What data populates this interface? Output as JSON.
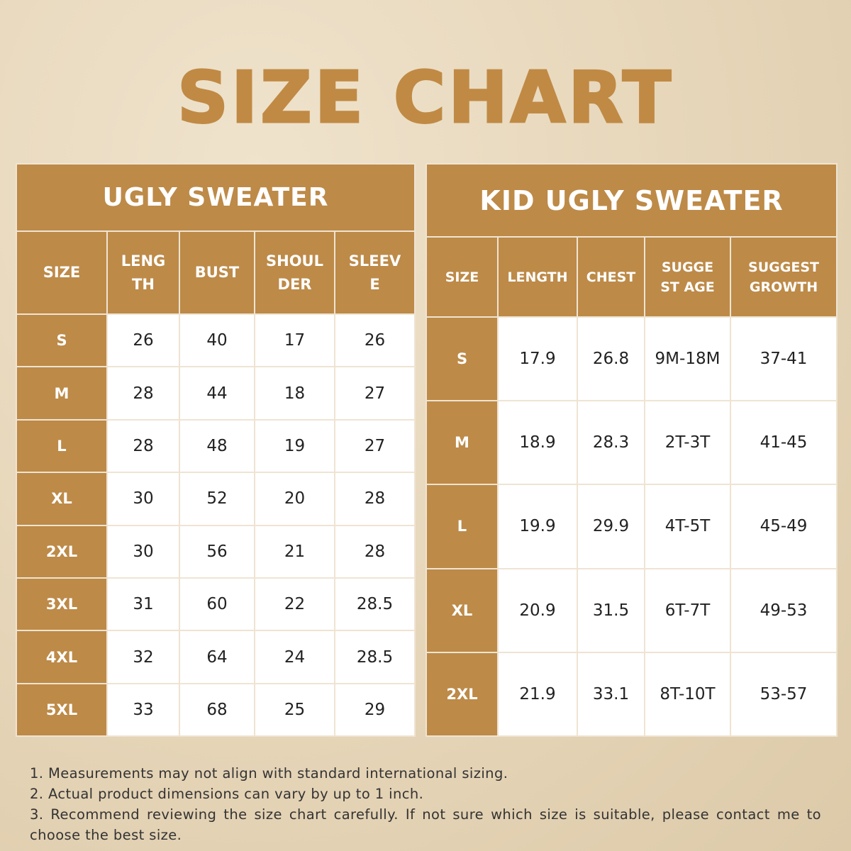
{
  "title": "SIZE CHART",
  "colors": {
    "brand": "#bd8a48",
    "background": "#e6d5b8",
    "cell": "#ffffff"
  },
  "tables": [
    {
      "title": "UGLY SWEATER",
      "headers": [
        "SIZE",
        "LENGTH",
        "BUST",
        "SHOULDER",
        "SLEEVE"
      ],
      "rows": [
        [
          "S",
          "26",
          "40",
          "17",
          "26"
        ],
        [
          "M",
          "28",
          "44",
          "18",
          "27"
        ],
        [
          "L",
          "28",
          "48",
          "19",
          "27"
        ],
        [
          "XL",
          "30",
          "52",
          "20",
          "28"
        ],
        [
          "2XL",
          "30",
          "56",
          "21",
          "28"
        ],
        [
          "3XL",
          "31",
          "60",
          "22",
          "28.5"
        ],
        [
          "4XL",
          "32",
          "64",
          "24",
          "28.5"
        ],
        [
          "5XL",
          "33",
          "68",
          "25",
          "29"
        ]
      ]
    },
    {
      "title": "KID UGLY SWEATER",
      "headers": [
        "SIZE",
        "LENGTH",
        "CHEST",
        "SUGGEST AGE",
        "SUGGEST GROWTH"
      ],
      "rows": [
        [
          "S",
          "17.9",
          "26.8",
          "9M-18M",
          "37-41"
        ],
        [
          "M",
          "18.9",
          "28.3",
          "2T-3T",
          "41-45"
        ],
        [
          "L",
          "19.9",
          "29.9",
          "4T-5T",
          "45-49"
        ],
        [
          "XL",
          "20.9",
          "31.5",
          "6T-7T",
          "49-53"
        ],
        [
          "2XL",
          "21.9",
          "33.1",
          "8T-10T",
          "53-57"
        ]
      ]
    }
  ],
  "notes": [
    "1. Measurements may not align with standard international sizing.",
    "2. Actual product dimensions can vary by up to 1 inch.",
    "3. Recommend reviewing the size chart carefully. If not sure which size is suitable, please contact me to choose the best size."
  ]
}
